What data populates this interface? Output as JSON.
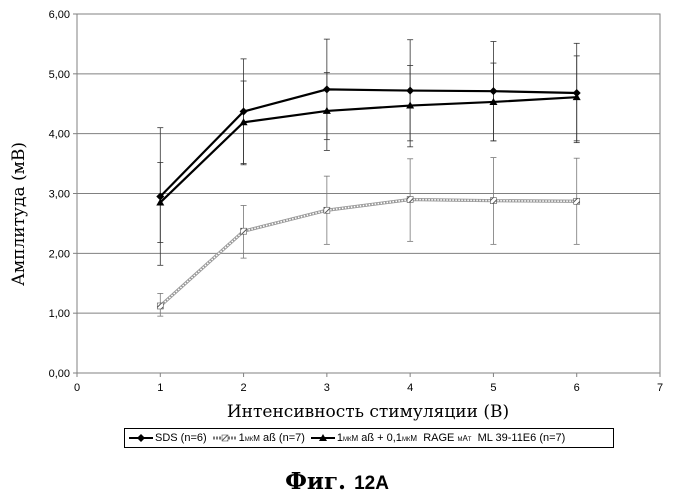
{
  "chart_data": {
    "type": "line",
    "ylabel": "Амплитуда (мВ)",
    "xlabel": "Интенсивность стимуляции (В)",
    "xlim": [
      0,
      7
    ],
    "ylim": [
      0,
      6
    ],
    "x_ticks": [
      "0",
      "1",
      "2",
      "3",
      "4",
      "5",
      "6",
      "7"
    ],
    "y_ticks": [
      "0,00",
      "1,00",
      "2,00",
      "3,00",
      "4,00",
      "5,00",
      "6,00"
    ],
    "grid": "horizontal",
    "x": [
      1,
      2,
      3,
      4,
      5,
      6
    ],
    "series": [
      {
        "name": "SDS (n=6)",
        "color": "#000000",
        "marker": "diamond",
        "style": "solid",
        "values": [
          2.95,
          4.37,
          4.74,
          4.72,
          4.71,
          4.68
        ],
        "error_low": [
          1.8,
          3.48,
          3.9,
          3.88,
          3.88,
          3.85
        ],
        "error_high": [
          4.1,
          5.25,
          5.58,
          5.57,
          5.54,
          5.51
        ]
      },
      {
        "name": "1мкМ aß (n=7)",
        "color": "#888888",
        "marker": "hatched",
        "style": "hatched",
        "values": [
          1.12,
          2.37,
          2.72,
          2.9,
          2.88,
          2.87
        ],
        "error_low": [
          0.95,
          1.92,
          2.15,
          2.2,
          2.15,
          2.15
        ],
        "error_high": [
          1.33,
          2.8,
          3.29,
          3.58,
          3.6,
          3.59
        ]
      },
      {
        "name": "1мкМ aß + 0,1мкМ RAGE мАт ML 39-11E6 (n=7)",
        "color": "#000000",
        "marker": "triangle",
        "style": "solid",
        "values": [
          2.85,
          4.19,
          4.38,
          4.47,
          4.53,
          4.61
        ],
        "error_low": [
          2.18,
          3.5,
          3.72,
          3.78,
          3.88,
          3.88
        ],
        "error_high": [
          3.52,
          4.88,
          5.02,
          5.14,
          5.18,
          5.3
        ]
      }
    ]
  },
  "legend": {
    "item1": "SDS (n=6)",
    "item2_prefix": "1",
    "item2_sub": "мкМ",
    "item2_suffix": " aß (n=7)",
    "item3_a": "1",
    "item3_sub1": "мкМ",
    "item3_b": " aß + 0,1",
    "item3_sub2": "мкМ",
    "item3_c": "  RAGE ",
    "item3_sub3": "мАт",
    "item3_d": "  ML 39-11E6 (n=7)"
  },
  "caption": {
    "word": "Фиг.",
    "number": "12A"
  }
}
